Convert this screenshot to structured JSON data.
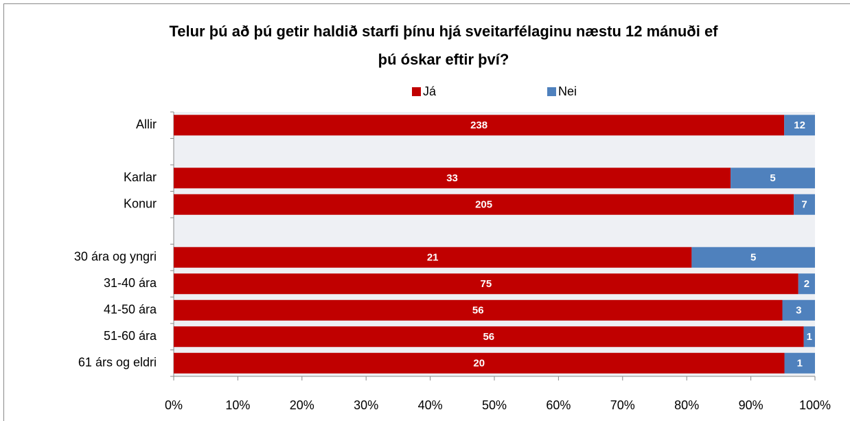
{
  "chart_data": {
    "type": "bar",
    "orientation": "horizontal",
    "stacking": "percent",
    "title": [
      "Telur þú að þú getir haldið starfi þínu hjá sveitarfélaginu næstu 12 mánuði ef",
      "þú óskar eftir því?"
    ],
    "categories": [
      "Allir",
      null,
      "Karlar",
      "Konur",
      null,
      "30 ára og yngri",
      "31-40 ára",
      "41-50 ára",
      "51-60 ára",
      "61 árs og eldri"
    ],
    "series": [
      {
        "name": "Já",
        "color": "#c00000",
        "values": [
          238,
          null,
          33,
          205,
          null,
          21,
          75,
          56,
          56,
          20
        ]
      },
      {
        "name": "Nei",
        "color": "#4f81bd",
        "values": [
          12,
          null,
          5,
          7,
          null,
          5,
          2,
          3,
          1,
          1
        ]
      }
    ],
    "xlim": [
      0,
      100
    ],
    "xticks": [
      {
        "value": 0,
        "label": "0%"
      },
      {
        "value": 10,
        "label": "10%"
      },
      {
        "value": 20,
        "label": "20%"
      },
      {
        "value": 30,
        "label": "30%"
      },
      {
        "value": 40,
        "label": "40%"
      },
      {
        "value": 50,
        "label": "50%"
      },
      {
        "value": 60,
        "label": "60%"
      },
      {
        "value": 70,
        "label": "70%"
      },
      {
        "value": 80,
        "label": "80%"
      },
      {
        "value": 90,
        "label": "90%"
      },
      {
        "value": 100,
        "label": "100%"
      }
    ],
    "legend": "top"
  }
}
